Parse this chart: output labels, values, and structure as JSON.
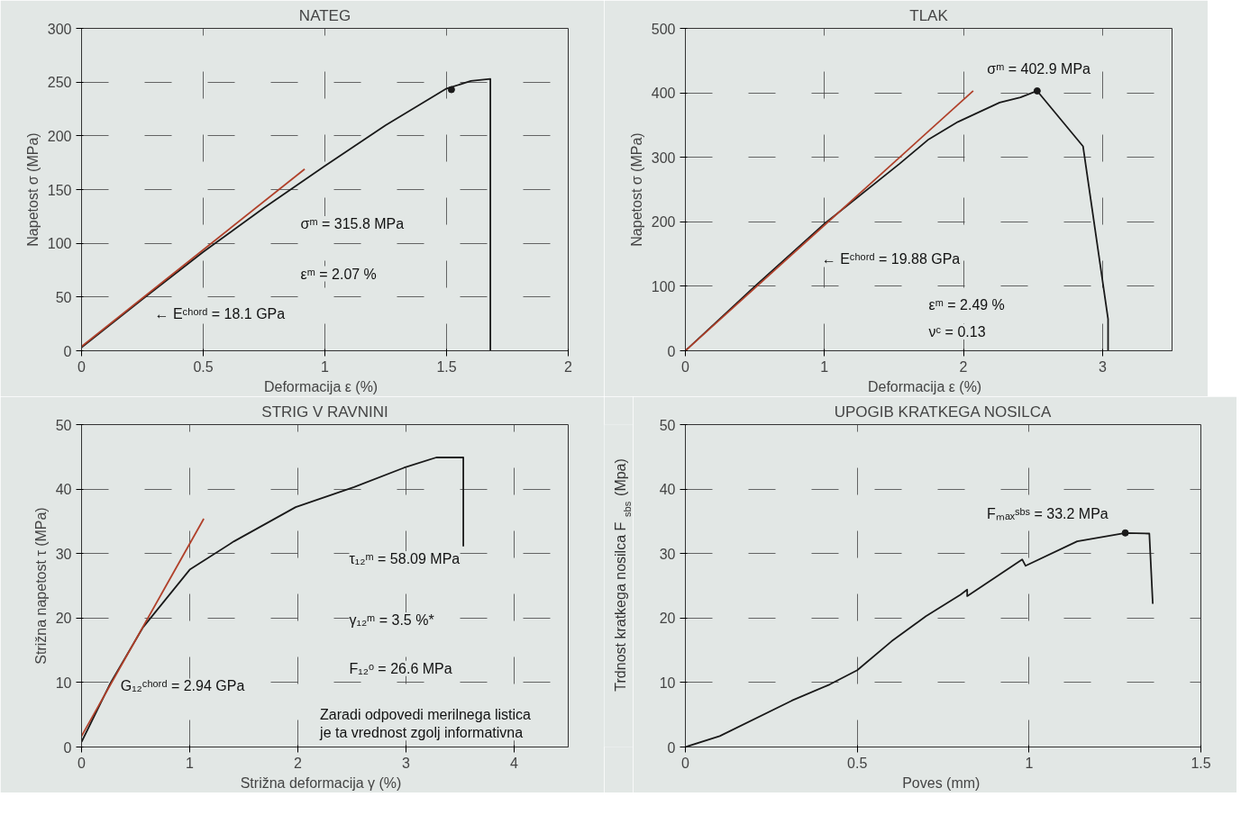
{
  "chart_data": [
    {
      "type": "line",
      "title": "NATEG",
      "xlabel": "Deformacija  ε  (%)",
      "ylabel": "Napetost σ (MPa)",
      "xlim": [
        0,
        2
      ],
      "ylim": [
        0,
        300
      ],
      "xticks": [
        0,
        0.5,
        1,
        1.5,
        2
      ],
      "yticks": [
        0,
        50,
        100,
        150,
        200,
        250,
        300
      ],
      "grid": true,
      "series": [
        {
          "color": "#1a1a1a",
          "x": [
            0,
            0.25,
            0.5,
            0.75,
            1,
            1.25,
            1.5,
            1.6,
            1.68,
            1.68
          ],
          "values": [
            3,
            48,
            92,
            133,
            172,
            210,
            244,
            251,
            253,
            0
          ]
        },
        {
          "color": "#b0402a",
          "x": [
            0,
            0.917
          ],
          "values": [
            4,
            169
          ]
        },
        {
          "type": "scatter",
          "marker": "circle",
          "color": "#1a1a1a",
          "x": [
            1.52
          ],
          "values": [
            243
          ]
        }
      ],
      "annotations": [
        "σᵐ = 315.8 MPa",
        "εᵐ = 2.07 %",
        "← Eᶜʰᵒʳᵈ = 18.1 GPa"
      ]
    },
    {
      "type": "line",
      "title": "TLAK",
      "xlabel": "Deformacija  ε  (%)",
      "ylabel": "Napetost σ (MPa)",
      "xlim": [
        0,
        3.5
      ],
      "ylim": [
        0,
        500
      ],
      "xticks": [
        0,
        1,
        2,
        3
      ],
      "yticks": [
        0,
        100,
        200,
        300,
        400,
        500
      ],
      "grid": true,
      "series": [
        {
          "color": "#1a1a1a",
          "x": [
            0,
            0.5,
            1,
            1.54,
            1.75,
            1.96,
            2.11,
            2.26,
            2.41,
            2.53,
            2.86,
            3.04,
            3.04
          ],
          "values": [
            0,
            100,
            197,
            290,
            328,
            355,
            370,
            385,
            393,
            403,
            317,
            49,
            0
          ]
        },
        {
          "color": "#b0402a",
          "x": [
            0,
            2.07
          ],
          "values": [
            0,
            403
          ]
        },
        {
          "type": "scatter",
          "marker": "circle",
          "color": "#1a1a1a",
          "x": [
            2.53
          ],
          "values": [
            403
          ]
        }
      ],
      "annotations": [
        "σᵐ = 402.9 MPa",
        "← Eᶜʰᵒʳᵈ = 19.88 GPa",
        "εᵐ = 2.49 %",
        "νᶜ = 0.13"
      ]
    },
    {
      "type": "line",
      "title": "STRIG V RAVNINI",
      "xlabel": "Strižna deformacija  γ  (%)",
      "ylabel": "Strižna napetost τ (MPa)",
      "xlim": [
        0,
        4.5
      ],
      "ylim": [
        0,
        50
      ],
      "xticks": [
        0,
        1,
        2,
        3,
        4
      ],
      "yticks": [
        0,
        10,
        20,
        30,
        40,
        50
      ],
      "grid": true,
      "series": [
        {
          "color": "#1a1a1a",
          "x": [
            0,
            0.27,
            0.57,
            1,
            1.41,
            1.98,
            2.52,
            2.98,
            3.28,
            3.53,
            3.53
          ],
          "values": [
            0.8,
            10,
            18.6,
            27.5,
            31.9,
            37.2,
            40.3,
            43.3,
            44.9,
            44.9,
            31.1
          ]
        },
        {
          "color": "#b0402a",
          "x": [
            0,
            1.13
          ],
          "values": [
            1.7,
            35.4
          ]
        }
      ],
      "annotations": [
        "τ₁₂ᵐ = 58.09 MPa",
        "γ₁₂ᵐ = 3.5 %*",
        "F₁₂ᵒ = 26.6 MPa",
        "G₁₂ᶜʰᵒʳᵈ = 2.94 GPa",
        "Zaradi odpovedi merilnega listica\nje ta vrednost zgolj informativna"
      ]
    },
    {
      "type": "line",
      "title": "UPOGIB KRATKEGA NOSILCA",
      "xlabel": "Poves  (mm)",
      "ylabel": "Trdnost kratkega nosilca F$_{sbs}$ (Mpa)",
      "xlim": [
        0,
        1.5
      ],
      "ylim": [
        0,
        50
      ],
      "xticks": [
        0,
        0.5,
        1,
        1.5
      ],
      "yticks": [
        0,
        10,
        20,
        30,
        40,
        50
      ],
      "grid": true,
      "series": [
        {
          "color": "#1a1a1a",
          "x": [
            0,
            0.1,
            0.31,
            0.42,
            0.5,
            0.6,
            0.7,
            0.8,
            0.82,
            0.82,
            0.98,
            0.99,
            1.14,
            1.28,
            1.35,
            1.36
          ],
          "values": [
            0,
            1.7,
            7.2,
            9.7,
            11.9,
            16.4,
            20.3,
            23.6,
            24.4,
            23.4,
            29.1,
            28.1,
            31.9,
            33.2,
            33.1,
            22.2
          ]
        },
        {
          "type": "scatter",
          "marker": "circle",
          "color": "#1a1a1a",
          "x": [
            1.28
          ],
          "values": [
            33.2
          ]
        }
      ],
      "annotations": [
        "Fₘₐₓˢᵇˢ = 33.2 MPa"
      ]
    }
  ]
}
